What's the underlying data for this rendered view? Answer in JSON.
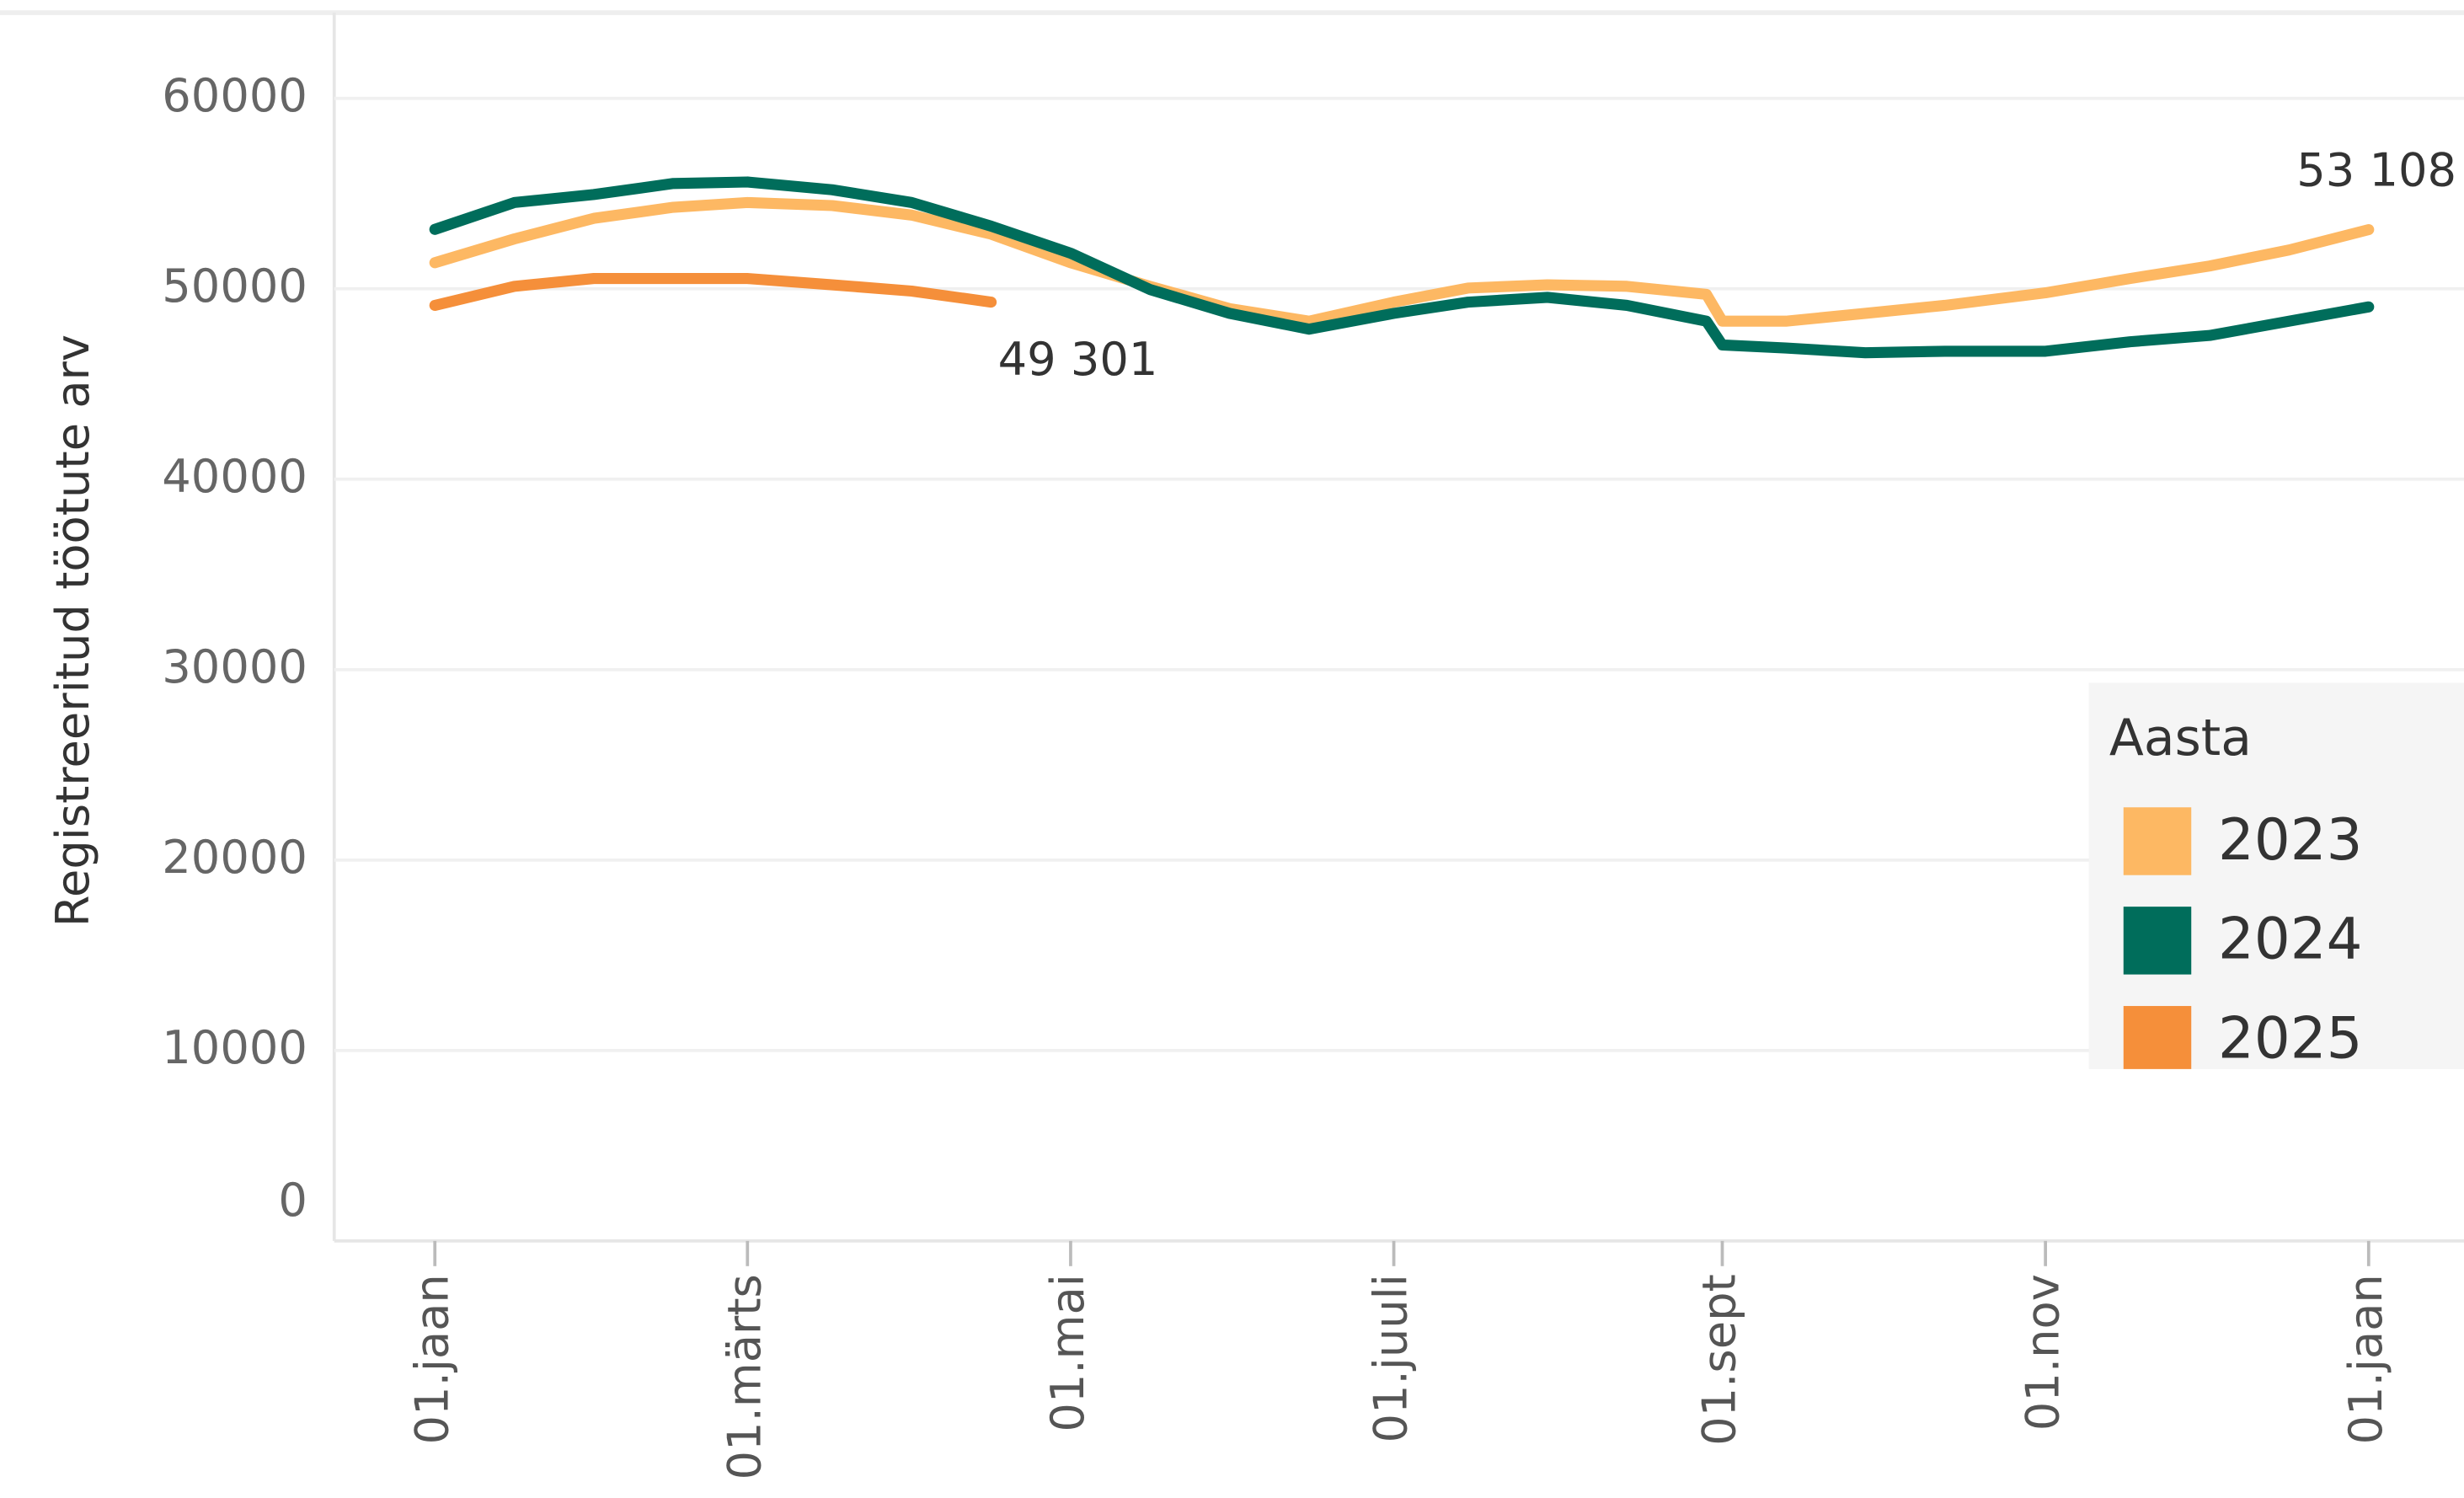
{
  "chart_data": {
    "type": "line",
    "y_label": "Registreeritud töötute arv",
    "legend_title": "Aasta",
    "legend": "right",
    "grid": true,
    "x": [
      0,
      15,
      30,
      45,
      59,
      75,
      90,
      105,
      120,
      135,
      150,
      165,
      181,
      195,
      210,
      225,
      240,
      243,
      255,
      270,
      285,
      304,
      320,
      335,
      350,
      365
    ],
    "xlim": [
      -19,
      383
    ],
    "xticks": [
      {
        "value": 0,
        "label": "01.jaan"
      },
      {
        "value": 59,
        "label": "01.märts"
      },
      {
        "value": 120,
        "label": "01.mai"
      },
      {
        "value": 181,
        "label": "01.juuli"
      },
      {
        "value": 243,
        "label": "01.sept"
      },
      {
        "value": 304,
        "label": "01.nov"
      },
      {
        "value": 365,
        "label": "01.jaan"
      }
    ],
    "ylim": [
      0,
      64500
    ],
    "yticks": [
      0,
      10000,
      20000,
      30000,
      40000,
      50000,
      60000
    ],
    "series": [
      {
        "name": "2023",
        "color": "#fdb863",
        "values": [
          51370,
          52620,
          53700,
          54280,
          54530,
          54370,
          53870,
          52870,
          51370,
          50130,
          48960,
          48300,
          49300,
          50040,
          50210,
          50130,
          49710,
          48300,
          48300,
          48710,
          49130,
          49790,
          50540,
          51200,
          52040,
          53108
        ],
        "value_labels": [
          null,
          null,
          null,
          null,
          null,
          null,
          null,
          null,
          null,
          null,
          null,
          null,
          null,
          null,
          null,
          null,
          null,
          null,
          null,
          null,
          null,
          null,
          null,
          null,
          null,
          "53 108"
        ]
      },
      {
        "name": "2024",
        "color": "#006d5b",
        "values": [
          53120,
          54530,
          54950,
          55530,
          55610,
          55200,
          54530,
          53290,
          51870,
          49960,
          48710,
          47880,
          48710,
          49300,
          49550,
          49130,
          48300,
          47050,
          46890,
          46640,
          46720,
          46720,
          47220,
          47550,
          48300,
          49050
        ]
      },
      {
        "name": "2025",
        "color": "#f58f3a",
        "values": [
          49130,
          50130,
          50540,
          50540,
          50540,
          50210,
          49880,
          49301,
          null,
          null,
          null,
          null,
          null,
          null,
          null,
          null,
          null,
          null,
          null,
          null,
          null,
          null,
          null,
          null,
          null,
          null
        ],
        "value_labels": [
          null,
          null,
          null,
          null,
          null,
          null,
          null,
          "49 301",
          null,
          null,
          null,
          null,
          null,
          null,
          null,
          null,
          null,
          null,
          null,
          null,
          null,
          null,
          null,
          null,
          null,
          null
        ]
      }
    ]
  }
}
